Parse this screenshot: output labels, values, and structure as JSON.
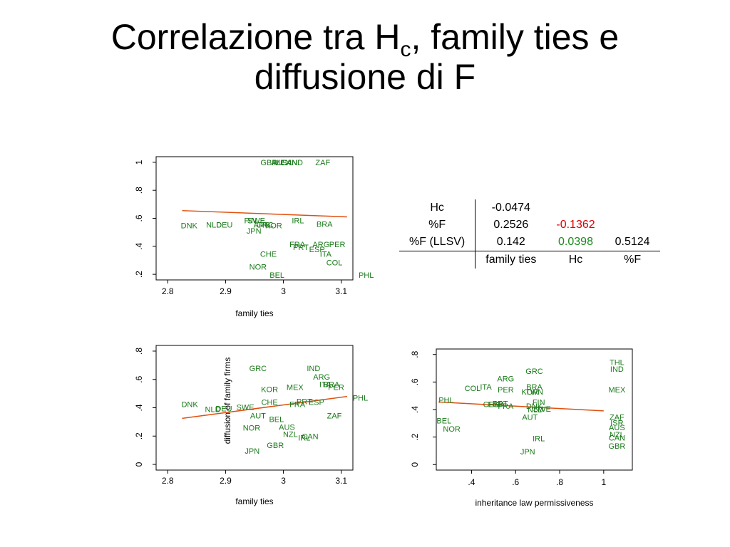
{
  "slide": {
    "title_pre": "Correlazione tra H",
    "title_sub": "c",
    "title_post": ", family ties e",
    "title_line2": "diffusione di F"
  },
  "table": {
    "rows": [
      {
        "label": "Hc",
        "c1": "-0.0474",
        "c2": "",
        "c3": ""
      },
      {
        "label": "%F",
        "c1": "0.2526",
        "c2": "-0.1362",
        "c3": ""
      },
      {
        "label": "%F (LLSV)",
        "c1": "0.142",
        "c2": "0.0398",
        "c3": "0.5124"
      }
    ],
    "header": {
      "label": "",
      "c1": "family ties",
      "c2": "Hc",
      "c3": "%F"
    },
    "colors": {
      "negative": "#e00000",
      "positive": "#1a8a1a"
    }
  },
  "chart_data": [
    {
      "type": "scatter",
      "title": "",
      "xlabel": "family ties",
      "ylabel": "",
      "xlim": [
        2.78,
        3.12
      ],
      "ylim": [
        0.16,
        1.04
      ],
      "xticks": [
        2.8,
        2.9,
        3,
        3.1
      ],
      "xtick_labels": [
        "2.8",
        "2.9",
        "3",
        "3.1"
      ],
      "yticks": [
        0.2,
        0.4,
        0.6,
        0.8,
        1
      ],
      "ytick_labels": [
        ".2",
        ".4",
        ".6",
        ".8",
        "1"
      ],
      "fit_line": {
        "x": [
          2.825,
          3.11
        ],
        "y": [
          0.655,
          0.61
        ],
        "color": "#e05010"
      },
      "marker_color": "#1a7a1a",
      "points": [
        {
          "label": "GBR",
          "x": 2.975,
          "y": 1.0
        },
        {
          "label": "AUS",
          "x": 2.993,
          "y": 1.0
        },
        {
          "label": "MEX",
          "x": 2.998,
          "y": 1.0
        },
        {
          "label": "CAN",
          "x": 3.01,
          "y": 1.0
        },
        {
          "label": "IND",
          "x": 3.022,
          "y": 1.0
        },
        {
          "label": "ZAF",
          "x": 3.068,
          "y": 1.0
        },
        {
          "label": "FIN",
          "x": 2.943,
          "y": 0.585
        },
        {
          "label": "SWE",
          "x": 2.953,
          "y": 0.585
        },
        {
          "label": "IRL",
          "x": 3.025,
          "y": 0.585
        },
        {
          "label": "BRA",
          "x": 3.071,
          "y": 0.56
        },
        {
          "label": "DNK",
          "x": 2.837,
          "y": 0.55
        },
        {
          "label": "NLD",
          "x": 2.88,
          "y": 0.555
        },
        {
          "label": "DEU",
          "x": 2.898,
          "y": 0.555
        },
        {
          "label": "ARG",
          "x": 2.963,
          "y": 0.555
        },
        {
          "label": "GRC",
          "x": 2.968,
          "y": 0.555
        },
        {
          "label": "KOR",
          "x": 2.983,
          "y": 0.548
        },
        {
          "label": "JPN",
          "x": 2.949,
          "y": 0.51
        },
        {
          "label": "FRA",
          "x": 3.024,
          "y": 0.415
        },
        {
          "label": "PRT",
          "x": 3.03,
          "y": 0.395
        },
        {
          "label": "ARG",
          "x": 3.065,
          "y": 0.415
        },
        {
          "label": "PER",
          "x": 3.093,
          "y": 0.415
        },
        {
          "label": "ESP",
          "x": 3.058,
          "y": 0.38
        },
        {
          "label": "ITA",
          "x": 3.073,
          "y": 0.345
        },
        {
          "label": "CHE",
          "x": 2.974,
          "y": 0.345
        },
        {
          "label": "COL",
          "x": 3.088,
          "y": 0.285
        },
        {
          "label": "NOR",
          "x": 2.956,
          "y": 0.255
        },
        {
          "label": "BEL",
          "x": 2.989,
          "y": 0.195
        },
        {
          "label": "PHL",
          "x": 3.143,
          "y": 0.195
        }
      ]
    },
    {
      "type": "scatter",
      "title": "",
      "xlabel": "family ties",
      "ylabel": "diffusion of family firms",
      "xlim": [
        2.78,
        3.12
      ],
      "ylim": [
        -0.04,
        0.84
      ],
      "xticks": [
        2.8,
        2.9,
        3,
        3.1
      ],
      "xtick_labels": [
        "2.8",
        "2.9",
        "3",
        "3.1"
      ],
      "yticks": [
        0,
        0.2,
        0.4,
        0.6,
        0.8
      ],
      "ytick_labels": [
        "0",
        ".2",
        ".4",
        ".6",
        ".8"
      ],
      "fit_line": {
        "x": [
          2.825,
          3.11
        ],
        "y": [
          0.325,
          0.48
        ],
        "color": "#e05010"
      },
      "marker_color": "#1a7a1a",
      "points": [
        {
          "label": "GRC",
          "x": 2.956,
          "y": 0.68
        },
        {
          "label": "IND",
          "x": 3.052,
          "y": 0.68
        },
        {
          "label": "ARG",
          "x": 3.066,
          "y": 0.62
        },
        {
          "label": "ITA",
          "x": 3.072,
          "y": 0.565
        },
        {
          "label": "BRA",
          "x": 3.083,
          "y": 0.565
        },
        {
          "label": "PER",
          "x": 3.091,
          "y": 0.545
        },
        {
          "label": "MEX",
          "x": 3.02,
          "y": 0.545
        },
        {
          "label": "KOR",
          "x": 2.976,
          "y": 0.53
        },
        {
          "label": "PHL",
          "x": 3.133,
          "y": 0.47
        },
        {
          "label": "DNK",
          "x": 2.838,
          "y": 0.425
        },
        {
          "label": "NLD",
          "x": 2.878,
          "y": 0.39
        },
        {
          "label": "DEU",
          "x": 2.897,
          "y": 0.395
        },
        {
          "label": "SWE",
          "x": 2.934,
          "y": 0.405
        },
        {
          "label": "CHE",
          "x": 2.976,
          "y": 0.44
        },
        {
          "label": "PRT",
          "x": 3.036,
          "y": 0.445
        },
        {
          "label": "ESP",
          "x": 3.057,
          "y": 0.44
        },
        {
          "label": "FRA",
          "x": 3.024,
          "y": 0.425
        },
        {
          "label": "AUT",
          "x": 2.956,
          "y": 0.345
        },
        {
          "label": "BEL",
          "x": 2.988,
          "y": 0.32
        },
        {
          "label": "ZAF",
          "x": 3.088,
          "y": 0.345
        },
        {
          "label": "AUS",
          "x": 3.006,
          "y": 0.265
        },
        {
          "label": "NOR",
          "x": 2.945,
          "y": 0.26
        },
        {
          "label": "NZL",
          "x": 3.012,
          "y": 0.215
        },
        {
          "label": "IRL",
          "x": 3.036,
          "y": 0.19
        },
        {
          "label": "CAN",
          "x": 3.046,
          "y": 0.2
        },
        {
          "label": "GBR",
          "x": 2.986,
          "y": 0.135
        },
        {
          "label": "JPN",
          "x": 2.946,
          "y": 0.095
        }
      ]
    },
    {
      "type": "scatter",
      "title": "",
      "xlabel": "inheritance law permissiveness",
      "ylabel": "",
      "xlim": [
        0.24,
        1.13
      ],
      "ylim": [
        -0.04,
        0.84
      ],
      "xticks": [
        0.4,
        0.6,
        0.8,
        1
      ],
      "xtick_labels": [
        ".4",
        ".6",
        ".8",
        "1"
      ],
      "yticks": [
        0,
        0.2,
        0.4,
        0.6,
        0.8
      ],
      "ytick_labels": [
        "0",
        ".2",
        ".4",
        ".6",
        ".8"
      ],
      "fit_line": {
        "x": [
          0.25,
          1.0
        ],
        "y": [
          0.455,
          0.39
        ],
        "color": "#e05010"
      },
      "marker_color": "#1a7a1a",
      "points": [
        {
          "label": "THL",
          "x": 1.06,
          "y": 0.745
        },
        {
          "label": "IND",
          "x": 1.06,
          "y": 0.695
        },
        {
          "label": "GRC",
          "x": 0.685,
          "y": 0.68
        },
        {
          "label": "ARG",
          "x": 0.555,
          "y": 0.625
        },
        {
          "label": "COL",
          "x": 0.405,
          "y": 0.555
        },
        {
          "label": "ITA",
          "x": 0.465,
          "y": 0.565
        },
        {
          "label": "BRA",
          "x": 0.685,
          "y": 0.565
        },
        {
          "label": "PER",
          "x": 0.555,
          "y": 0.545
        },
        {
          "label": "MEX",
          "x": 1.06,
          "y": 0.545
        },
        {
          "label": "KOR",
          "x": 0.665,
          "y": 0.53
        },
        {
          "label": "TWN",
          "x": 0.685,
          "y": 0.53
        },
        {
          "label": "PHL",
          "x": 0.285,
          "y": 0.47
        },
        {
          "label": "FIN",
          "x": 0.705,
          "y": 0.455
        },
        {
          "label": "CHE",
          "x": 0.49,
          "y": 0.44
        },
        {
          "label": "PRT",
          "x": 0.53,
          "y": 0.445
        },
        {
          "label": "ESP",
          "x": 0.51,
          "y": 0.44
        },
        {
          "label": "FRA",
          "x": 0.555,
          "y": 0.425
        },
        {
          "label": "DNK",
          "x": 0.685,
          "y": 0.425
        },
        {
          "label": "NLD",
          "x": 0.69,
          "y": 0.4
        },
        {
          "label": "SWE",
          "x": 0.72,
          "y": 0.405
        },
        {
          "label": "AUT",
          "x": 0.665,
          "y": 0.345
        },
        {
          "label": "ZAF",
          "x": 1.06,
          "y": 0.345
        },
        {
          "label": "BEL",
          "x": 0.275,
          "y": 0.32
        },
        {
          "label": "ISR",
          "x": 1.06,
          "y": 0.305
        },
        {
          "label": "AUS",
          "x": 1.06,
          "y": 0.27
        },
        {
          "label": "NOR",
          "x": 0.31,
          "y": 0.26
        },
        {
          "label": "NZL",
          "x": 1.06,
          "y": 0.22
        },
        {
          "label": "CAN",
          "x": 1.06,
          "y": 0.195
        },
        {
          "label": "IRL",
          "x": 0.705,
          "y": 0.19
        },
        {
          "label": "GBR",
          "x": 1.06,
          "y": 0.135
        },
        {
          "label": "JPN",
          "x": 0.655,
          "y": 0.095
        }
      ]
    }
  ]
}
